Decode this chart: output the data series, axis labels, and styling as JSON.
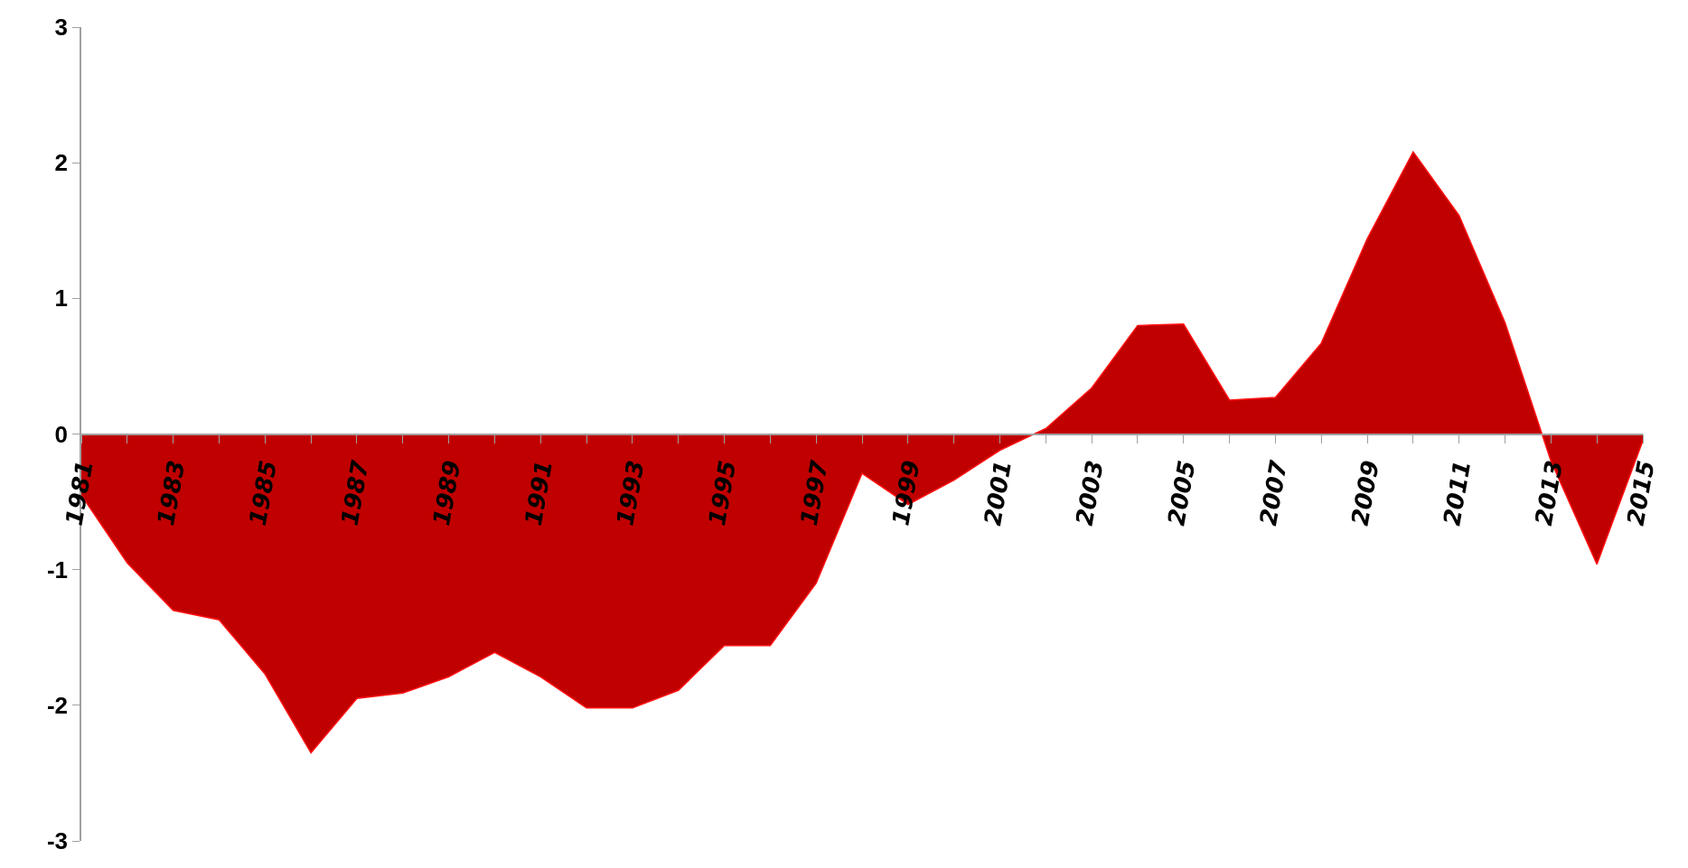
{
  "chart_data": {
    "type": "area",
    "x": [
      1981,
      1982,
      1983,
      1984,
      1985,
      1986,
      1987,
      1988,
      1989,
      1990,
      1991,
      1992,
      1993,
      1994,
      1995,
      1996,
      1997,
      1998,
      1999,
      2000,
      2001,
      2002,
      2003,
      2004,
      2005,
      2006,
      2007,
      2008,
      2009,
      2010,
      2011,
      2012,
      2013,
      2014,
      2015
    ],
    "series": [
      {
        "color": "#c00000",
        "values": [
          -0.45,
          -0.95,
          -1.3,
          -1.37,
          -1.77,
          -2.35,
          -1.95,
          -1.91,
          -1.79,
          -1.61,
          -1.79,
          -2.02,
          -2.02,
          -1.89,
          -1.56,
          -1.56,
          -1.1,
          -0.29,
          -0.52,
          -0.34,
          -0.12,
          0.04,
          0.34,
          0.8,
          0.81,
          0.25,
          0.27,
          0.67,
          1.44,
          2.08,
          1.61,
          0.82,
          -0.2,
          -0.96,
          -0.05
        ]
      }
    ],
    "xlim": [
      1981,
      2015
    ],
    "xticks": [
      1981,
      1983,
      1985,
      1987,
      1989,
      1991,
      1993,
      1995,
      1997,
      1999,
      2001,
      2003,
      2005,
      2007,
      2009,
      2011,
      2013,
      2015
    ],
    "ylim": [
      -3,
      3
    ],
    "yticks": [
      -3,
      -2,
      -1,
      0,
      1,
      2,
      3
    ],
    "legend": false
  }
}
